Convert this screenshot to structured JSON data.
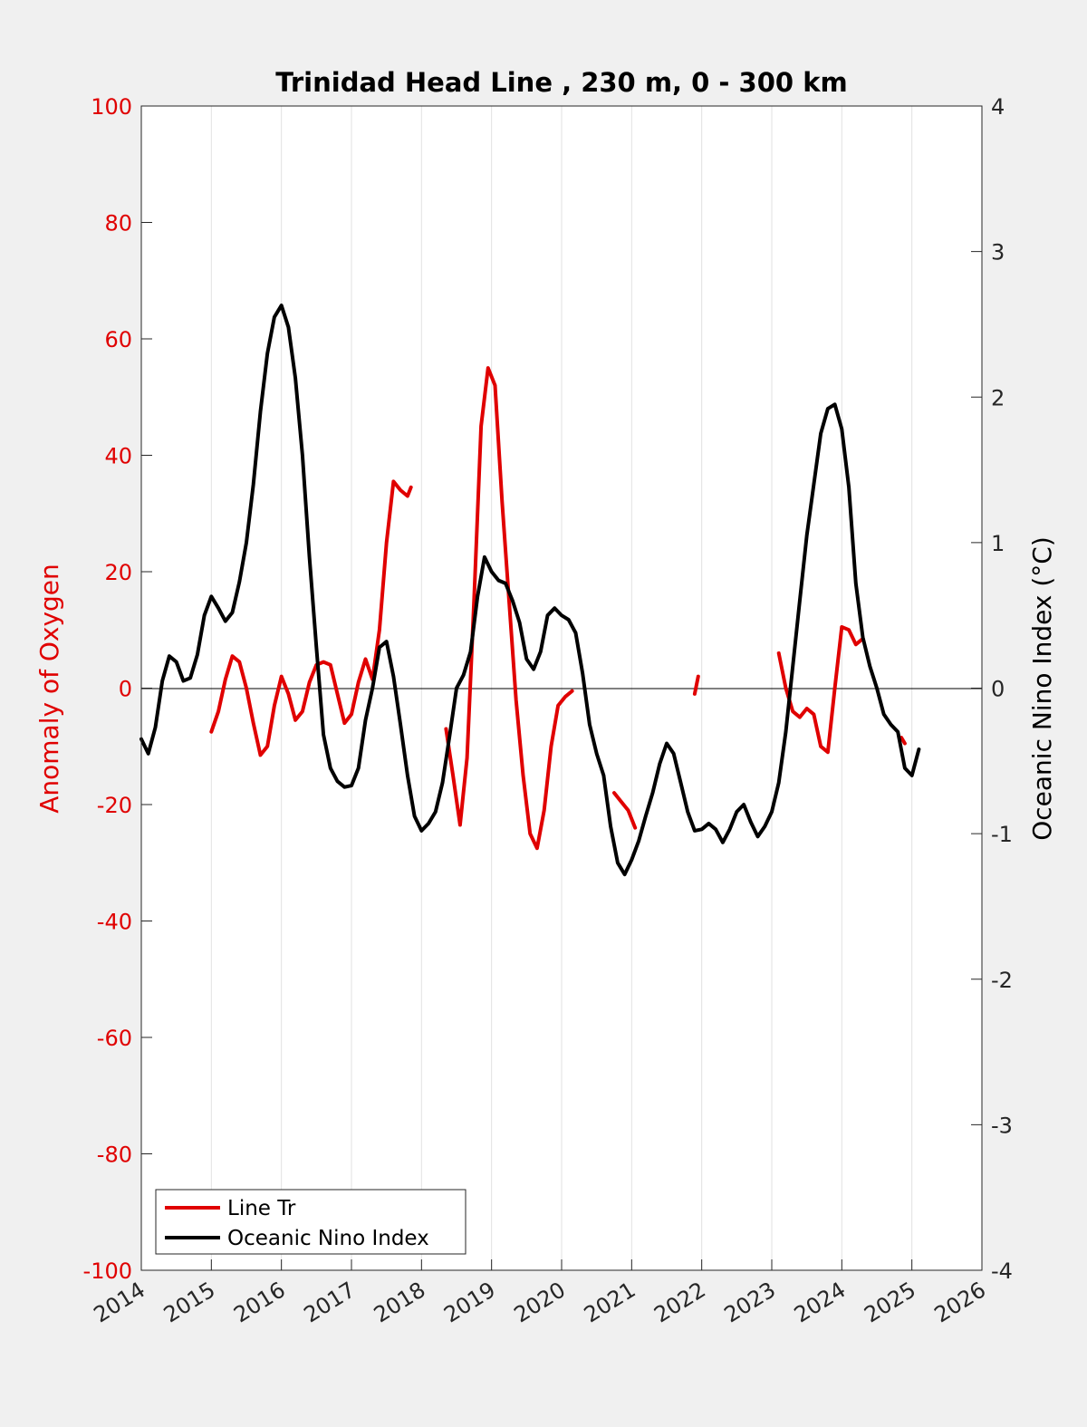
{
  "chart_data": {
    "type": "line",
    "title": "Trinidad Head Line , 230 m, 0 - 300 km",
    "ylabel_left": "Anomaly of Oxygen",
    "ylabel_right": "Oceanic Nino Index (°C)",
    "xlim": [
      2014,
      2026
    ],
    "ylim_left": [
      -100,
      100
    ],
    "ylim_right": [
      -4,
      4
    ],
    "x_ticks": [
      "2014",
      "2015",
      "2016",
      "2017",
      "2018",
      "2019",
      "2020",
      "2021",
      "2022",
      "2023",
      "2024",
      "2025",
      "2026"
    ],
    "y_ticks_left": [
      "100",
      "80",
      "60",
      "40",
      "20",
      "0",
      "-20",
      "-40",
      "-60",
      "-80",
      "-100"
    ],
    "y_ticks_right": [
      "4",
      "3",
      "2",
      "1",
      "0",
      "-1",
      "-2",
      "-3",
      "-4"
    ],
    "grid": "vertical",
    "legend_position": "bottom-left",
    "colors": {
      "left_axis": "#e00000",
      "line_tr": "#e00000",
      "oni": "#000000"
    },
    "series": [
      {
        "name": "Line Tr",
        "axis": "left",
        "color": "#e00000",
        "segments": [
          [
            [
              2015.0,
              -7.5
            ],
            [
              2015.1,
              -4
            ],
            [
              2015.2,
              1.5
            ],
            [
              2015.3,
              5.5
            ],
            [
              2015.4,
              4.5
            ],
            [
              2015.5,
              0
            ],
            [
              2015.6,
              -6
            ],
            [
              2015.7,
              -11.5
            ],
            [
              2015.8,
              -10
            ],
            [
              2015.9,
              -3
            ],
            [
              2016.0,
              2
            ],
            [
              2016.1,
              -1
            ],
            [
              2016.2,
              -5.5
            ],
            [
              2016.3,
              -4
            ],
            [
              2016.4,
              1
            ],
            [
              2016.5,
              4
            ],
            [
              2016.6,
              4.5
            ],
            [
              2016.7,
              4
            ],
            [
              2016.8,
              -1
            ],
            [
              2016.9,
              -6
            ],
            [
              2017.0,
              -4.5
            ],
            [
              2017.1,
              1
            ],
            [
              2017.2,
              5
            ],
            [
              2017.3,
              1.5
            ],
            [
              2017.4,
              10
            ],
            [
              2017.5,
              25
            ],
            [
              2017.6,
              35.5
            ],
            [
              2017.7,
              34
            ],
            [
              2017.8,
              33
            ],
            [
              2017.85,
              34.5
            ]
          ],
          [
            [
              2018.35,
              -7
            ],
            [
              2018.45,
              -15
            ],
            [
              2018.55,
              -23.5
            ],
            [
              2018.65,
              -12
            ],
            [
              2018.75,
              15
            ],
            [
              2018.85,
              45
            ],
            [
              2018.95,
              55
            ],
            [
              2019.05,
              52
            ],
            [
              2019.15,
              32
            ],
            [
              2019.25,
              15
            ],
            [
              2019.35,
              -2
            ],
            [
              2019.45,
              -15
            ],
            [
              2019.55,
              -25
            ],
            [
              2019.65,
              -27.5
            ],
            [
              2019.75,
              -21
            ],
            [
              2019.85,
              -10
            ],
            [
              2019.95,
              -3
            ],
            [
              2020.05,
              -1.5
            ],
            [
              2020.15,
              -0.5
            ]
          ],
          [
            [
              2020.75,
              -18
            ],
            [
              2020.85,
              -19.5
            ],
            [
              2020.95,
              -21
            ],
            [
              2021.05,
              -24
            ]
          ],
          [
            [
              2021.9,
              -1
            ],
            [
              2021.95,
              2
            ]
          ],
          [
            [
              2023.1,
              6
            ],
            [
              2023.2,
              0
            ],
            [
              2023.3,
              -4
            ],
            [
              2023.4,
              -5
            ],
            [
              2023.5,
              -3.5
            ],
            [
              2023.6,
              -4.5
            ],
            [
              2023.7,
              -10
            ],
            [
              2023.8,
              -11
            ],
            [
              2023.9,
              0
            ],
            [
              2024.0,
              10.5
            ],
            [
              2024.1,
              10
            ],
            [
              2024.2,
              7.5
            ],
            [
              2024.3,
              8.5
            ]
          ],
          [
            [
              2024.85,
              -8.5
            ],
            [
              2024.9,
              -9.5
            ]
          ]
        ]
      },
      {
        "name": "Oceanic Nino Index",
        "axis": "right",
        "color": "#000000",
        "segments": [
          [
            [
              2014.0,
              -0.35
            ],
            [
              2014.1,
              -0.45
            ],
            [
              2014.2,
              -0.27
            ],
            [
              2014.3,
              0.05
            ],
            [
              2014.4,
              0.22
            ],
            [
              2014.5,
              0.18
            ],
            [
              2014.6,
              0.05
            ],
            [
              2014.7,
              0.07
            ],
            [
              2014.8,
              0.23
            ],
            [
              2014.9,
              0.5
            ],
            [
              2015.0,
              0.63
            ],
            [
              2015.1,
              0.55
            ],
            [
              2015.2,
              0.46
            ],
            [
              2015.3,
              0.52
            ],
            [
              2015.4,
              0.73
            ],
            [
              2015.5,
              1.0
            ],
            [
              2015.6,
              1.4
            ],
            [
              2015.7,
              1.9
            ],
            [
              2015.8,
              2.3
            ],
            [
              2015.9,
              2.55
            ],
            [
              2016.0,
              2.63
            ],
            [
              2016.1,
              2.48
            ],
            [
              2016.2,
              2.13
            ],
            [
              2016.3,
              1.6
            ],
            [
              2016.4,
              0.9
            ],
            [
              2016.5,
              0.28
            ],
            [
              2016.6,
              -0.32
            ],
            [
              2016.7,
              -0.55
            ],
            [
              2016.8,
              -0.64
            ],
            [
              2016.9,
              -0.68
            ],
            [
              2017.0,
              -0.67
            ],
            [
              2017.1,
              -0.55
            ],
            [
              2017.2,
              -0.22
            ],
            [
              2017.3,
              0.0
            ],
            [
              2017.4,
              0.28
            ],
            [
              2017.5,
              0.32
            ],
            [
              2017.6,
              0.08
            ],
            [
              2017.7,
              -0.25
            ],
            [
              2017.8,
              -0.6
            ],
            [
              2017.9,
              -0.88
            ],
            [
              2018.0,
              -0.98
            ],
            [
              2018.1,
              -0.93
            ],
            [
              2018.2,
              -0.85
            ],
            [
              2018.3,
              -0.65
            ],
            [
              2018.4,
              -0.33
            ],
            [
              2018.5,
              0.0
            ],
            [
              2018.6,
              0.09
            ],
            [
              2018.7,
              0.25
            ],
            [
              2018.8,
              0.63
            ],
            [
              2018.9,
              0.9
            ],
            [
              2019.0,
              0.8
            ],
            [
              2019.1,
              0.74
            ],
            [
              2019.2,
              0.72
            ],
            [
              2019.3,
              0.6
            ],
            [
              2019.4,
              0.45
            ],
            [
              2019.5,
              0.2
            ],
            [
              2019.6,
              0.13
            ],
            [
              2019.7,
              0.25
            ],
            [
              2019.8,
              0.5
            ],
            [
              2019.9,
              0.55
            ],
            [
              2020.0,
              0.5
            ],
            [
              2020.1,
              0.47
            ],
            [
              2020.2,
              0.38
            ],
            [
              2020.3,
              0.1
            ],
            [
              2020.4,
              -0.25
            ],
            [
              2020.5,
              -0.45
            ],
            [
              2020.6,
              -0.6
            ],
            [
              2020.7,
              -0.95
            ],
            [
              2020.8,
              -1.2
            ],
            [
              2020.9,
              -1.28
            ],
            [
              2021.0,
              -1.18
            ],
            [
              2021.1,
              -1.05
            ],
            [
              2021.2,
              -0.88
            ],
            [
              2021.3,
              -0.72
            ],
            [
              2021.4,
              -0.52
            ],
            [
              2021.5,
              -0.38
            ],
            [
              2021.6,
              -0.45
            ],
            [
              2021.7,
              -0.65
            ],
            [
              2021.8,
              -0.85
            ],
            [
              2021.9,
              -0.98
            ],
            [
              2022.0,
              -0.97
            ],
            [
              2022.1,
              -0.93
            ],
            [
              2022.2,
              -0.97
            ],
            [
              2022.3,
              -1.06
            ],
            [
              2022.4,
              -0.97
            ],
            [
              2022.5,
              -0.85
            ],
            [
              2022.6,
              -0.8
            ],
            [
              2022.7,
              -0.92
            ],
            [
              2022.8,
              -1.02
            ],
            [
              2022.9,
              -0.95
            ],
            [
              2023.0,
              -0.85
            ],
            [
              2023.1,
              -0.65
            ],
            [
              2023.2,
              -0.3
            ],
            [
              2023.3,
              0.15
            ],
            [
              2023.4,
              0.6
            ],
            [
              2023.5,
              1.05
            ],
            [
              2023.6,
              1.4
            ],
            [
              2023.7,
              1.75
            ],
            [
              2023.8,
              1.92
            ],
            [
              2023.9,
              1.95
            ],
            [
              2024.0,
              1.78
            ],
            [
              2024.1,
              1.38
            ],
            [
              2024.2,
              0.72
            ],
            [
              2024.3,
              0.35
            ],
            [
              2024.4,
              0.15
            ],
            [
              2024.5,
              0.0
            ],
            [
              2024.6,
              -0.18
            ],
            [
              2024.7,
              -0.25
            ],
            [
              2024.8,
              -0.3
            ],
            [
              2024.9,
              -0.55
            ],
            [
              2025.0,
              -0.6
            ],
            [
              2025.1,
              -0.42
            ]
          ]
        ]
      }
    ]
  }
}
